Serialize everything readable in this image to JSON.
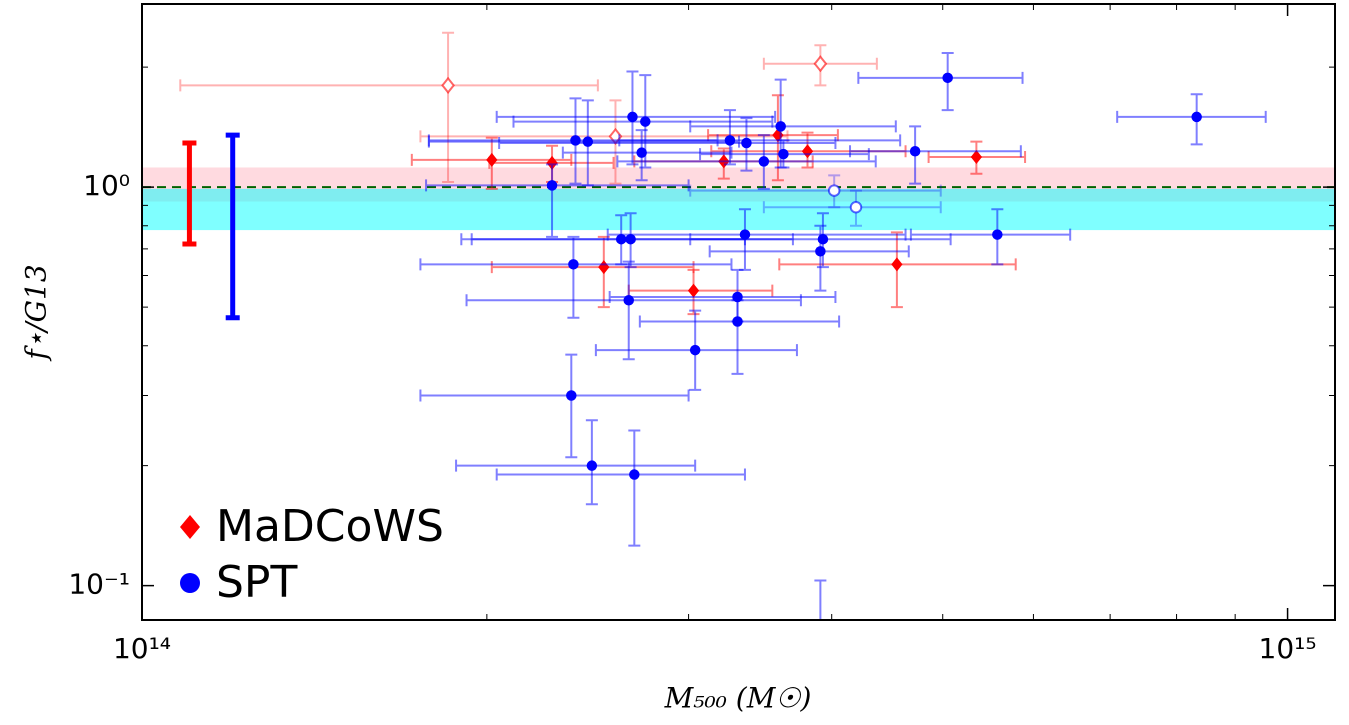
{
  "chart_data": {
    "type": "scatter",
    "x_label": "M₅₀₀ (M☉)",
    "y_label": "f⋆/G13",
    "xscale": "log",
    "yscale": "log",
    "xlim": [
      100000000000000.0,
      1100000000000000.0
    ],
    "ylim": [
      0.082,
      2.88
    ],
    "xticks": [
      {
        "value": 100000000000000.0,
        "label": "10¹⁴"
      },
      {
        "value": 1000000000000000.0,
        "label": "10¹⁵"
      }
    ],
    "yticks": [
      {
        "value": 0.1,
        "label": "10⁻¹"
      },
      {
        "value": 1,
        "label": "10⁰"
      }
    ],
    "xminorticks": [
      200000000000000.0,
      300000000000000.0,
      400000000000000.0,
      500000000000000.0,
      600000000000000.0,
      700000000000000.0,
      800000000000000.0,
      900000000000000.0
    ],
    "yminorticks": [
      0.2,
      0.3,
      0.4,
      0.5,
      0.6,
      0.7,
      0.8,
      0.9,
      2
    ],
    "legend": "lower left",
    "reference_line": {
      "y": 1,
      "color": "#006400"
    },
    "bands": [
      {
        "color": "#ffb6c1",
        "ylim": [
          0.92,
          1.12
        ]
      },
      {
        "color": "#00ffff",
        "ylim": [
          0.78,
          0.99
        ]
      }
    ],
    "systematics": [
      {
        "x": 110000000000000.0,
        "low": 0.72,
        "high": 1.29,
        "color": "#ff0000"
      },
      {
        "x": 120000000000000.0,
        "low": 0.47,
        "high": 1.35,
        "color": "#0000ff"
      }
    ],
    "series": [
      {
        "name": "MaDCoWS",
        "color": "#ff0000",
        "marker": "diamond",
        "x": [
          202000000000000.0,
          228000000000000.0,
          253000000000000.0,
          303000000000000.0,
          322000000000000.0,
          359000000000000.0,
          381000000000000.0,
          456000000000000.0,
          535000000000000.0,
          185000000000000.0,
          259000000000000.0,
          391000000000000.0
        ],
        "xlo": [
          172000000000000.0,
          201000000000000.0,
          202000000000000.0,
          266000000000000.0,
          269000000000000.0,
          312000000000000.0,
          314000000000000.0,
          360000000000000.0,
          486000000000000.0,
          108000000000000.0,
          175000000000000.0,
          349000000000000.0
        ],
        "xhi": [
          237000000000000.0,
          258000000000000.0,
          303000000000000.0,
          355000000000000.0,
          385000000000000.0,
          405000000000000.0,
          464000000000000.0,
          579000000000000.0,
          590000000000000.0,
          250000000000000.0,
          366000000000000.0,
          438000000000000.0
        ],
        "values": [
          1.17,
          1.15,
          0.63,
          0.55,
          1.16,
          1.35,
          1.23,
          0.64,
          1.19,
          1.8,
          1.34,
          2.04
        ],
        "ylo": [
          0.99,
          1.03,
          0.5,
          0.48,
          1.05,
          1.04,
          1.12,
          0.5,
          1.08,
          1.03,
          1.02,
          1.8
        ],
        "yhi": [
          1.33,
          1.27,
          0.75,
          0.62,
          1.25,
          1.7,
          1.37,
          0.77,
          1.3,
          2.44,
          1.65,
          2.27
        ],
        "open": [
          false,
          false,
          false,
          false,
          false,
          false,
          false,
          false,
          false,
          true,
          true,
          true
        ]
      },
      {
        "name": "SPT",
        "color": "#0000ff",
        "marker": "circle",
        "x": [
          505000000000000.0,
          833000000000000.0,
          473000000000000.0,
          361000000000000.0,
          363000000000000.0,
          349000000000000.0,
          337000000000000.0,
          326000000000000.0,
          275000000000000.0,
          268000000000000.0,
          273000000000000.0,
          245000000000000.0,
          239000000000000.0,
          228000000000000.0,
          262000000000000.0,
          267000000000000.0,
          238000000000000.0,
          336000000000000.0,
          393000000000000.0,
          391000000000000.0,
          558000000000000.0,
          266000000000000.0,
          331000000000000.0,
          331000000000000.0,
          304000000000000.0,
          237000000000000.0,
          247000000000000.0,
          269000000000000.0,
          391000000000000.0,
          402000000000000.0,
          420000000000000.0
        ],
        "xlo": [
          422000000000000.0,
          710000000000000.0,
          415000000000000.0,
          301000000000000.0,
          307000000000000.0,
          260000000000000.0,
          205000000000000.0,
          261000000000000.0,
          211000000000000.0,
          204000000000000.0,
          233000000000000.0,
          178000000000000.0,
          178000000000000.0,
          177000000000000.0,
          190000000000000.0,
          194000000000000.0,
          175000000000000.0,
          255000000000000.0,
          301000000000000.0,
          313000000000000.0,
          469000000000000.0,
          192000000000000.0,
          256000000000000.0,
          272000000000000.0,
          249000000000000.0,
          175000000000000.0,
          188000000000000.0,
          204000000000000.0,
          320000000000000.0,
          301000000000000.0,
          349000000000000.0
        ],
        "xhi": [
          587000000000000.0,
          957000000000000.0,
          585000000000000.0,
          455000000000000.0,
          431000000000000.0,
          437000000000000.0,
          403000000000000.0,
          459000000000000.0,
          355000000000000.0,
          357000000000000.0,
          327000000000000.0,
          332000000000000.0,
          318000000000000.0,
          300000000000000.0,
          336000000000000.0,
          370000000000000.0,
          327000000000000.0,
          464000000000000.0,
          508000000000000.0,
          467000000000000.0,
          646000000000000.0,
          376000000000000.0,
          403000000000000.0,
          406000000000000.0,
          373000000000000.0,
          300000000000000.0,
          304000000000000.0,
          336000000000000.0,
          480000000000000.0,
          498000000000000.0,
          498000000000000.0
        ],
        "values": [
          1.88,
          1.5,
          1.23,
          1.42,
          1.21,
          1.16,
          1.29,
          1.31,
          1.46,
          1.5,
          1.22,
          1.3,
          1.31,
          1.01,
          0.74,
          0.74,
          0.64,
          0.76,
          0.74,
          0.69,
          0.76,
          0.52,
          0.53,
          0.46,
          0.39,
          0.3,
          0.2,
          0.19,
          0.07,
          0.98,
          0.89
        ],
        "ylo": [
          1.56,
          1.28,
          1.02,
          1.12,
          1.12,
          0.99,
          1.1,
          1.14,
          1.12,
          1.14,
          1.04,
          1.01,
          1.02,
          0.75,
          0.64,
          0.63,
          0.47,
          0.62,
          0.63,
          0.55,
          0.64,
          0.37,
          0.46,
          0.34,
          0.31,
          0.21,
          0.16,
          0.126,
          0.05,
          0.89,
          0.8
        ],
        "yhi": [
          2.17,
          1.71,
          1.42,
          1.86,
          1.31,
          1.35,
          1.49,
          1.56,
          1.91,
          1.95,
          1.39,
          1.65,
          1.67,
          1.14,
          0.85,
          0.86,
          0.75,
          0.88,
          0.86,
          0.8,
          0.88,
          0.65,
          0.62,
          0.52,
          0.49,
          0.38,
          0.26,
          0.245,
          0.103,
          1.07,
          0.98
        ],
        "open": [
          false,
          false,
          false,
          false,
          false,
          false,
          false,
          false,
          false,
          false,
          false,
          false,
          false,
          false,
          false,
          false,
          false,
          false,
          false,
          false,
          false,
          false,
          false,
          false,
          false,
          false,
          false,
          false,
          false,
          true,
          true
        ]
      }
    ]
  }
}
